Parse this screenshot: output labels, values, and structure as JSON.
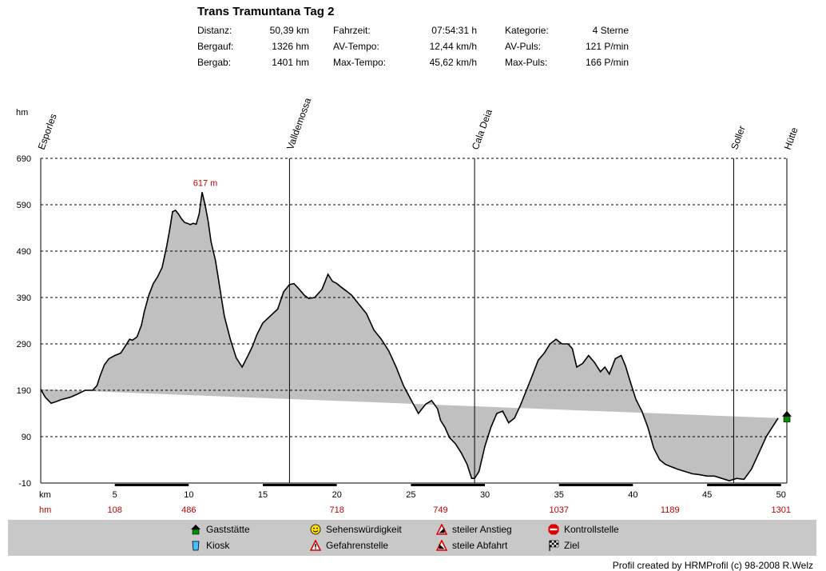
{
  "header": {
    "title": "Trans Tramuntana Tag 2",
    "stats": [
      [
        {
          "label": "Distanz:",
          "value": "50,39 km"
        },
        {
          "label": "Fahrzeit:",
          "value": "07:54:31 h"
        },
        {
          "label": "Kategorie:",
          "value": "4 Sterne"
        }
      ],
      [
        {
          "label": "Bergauf:",
          "value": "1326 hm"
        },
        {
          "label": "AV-Tempo:",
          "value": "12,44 km/h"
        },
        {
          "label": "AV-Puls:",
          "value": "121 P/min"
        }
      ],
      [
        {
          "label": "Bergab:",
          "value": "1401 hm"
        },
        {
          "label": "Max-Tempo:",
          "value": "45,62 km/h"
        },
        {
          "label": "Max-Puls:",
          "value": "166 P/min"
        }
      ]
    ]
  },
  "chart_data": {
    "type": "area",
    "ylabel": "hm",
    "xlabel": "km",
    "ylim": [
      -10,
      690
    ],
    "xlim": [
      0,
      50.39
    ],
    "yticks": [
      -10,
      90,
      190,
      290,
      390,
      490,
      590,
      690
    ],
    "xticks": [
      5,
      10,
      15,
      20,
      25,
      30,
      35,
      40,
      45,
      50
    ],
    "grid": true,
    "fill_color": "#c0c0c0",
    "line_color": "#000000",
    "waypoints": [
      {
        "name": "Esporles",
        "km": 0
      },
      {
        "name": "Valldemossa",
        "km": 16.8
      },
      {
        "name": "Cala Deia",
        "km": 29.3
      },
      {
        "name": "Soller",
        "km": 46.8
      },
      {
        "name": "Hütte",
        "km": 50.39
      }
    ],
    "peak_annotation": {
      "text": "617 m",
      "km": 10.9,
      "elev": 617
    },
    "cumulative_row": {
      "label": "hm",
      "entries": [
        {
          "km": 5,
          "value": "108"
        },
        {
          "km": 10,
          "value": "486"
        },
        {
          "km": 20,
          "value": "718"
        },
        {
          "km": 27,
          "value": "749"
        },
        {
          "km": 35,
          "value": "1037"
        },
        {
          "km": 42.5,
          "value": "1189"
        },
        {
          "km": 50,
          "value": "1301"
        }
      ]
    },
    "x": [
      0,
      0.3,
      0.7,
      1.0,
      1.4,
      2.0,
      2.5,
      3.0,
      3.5,
      3.8,
      4.0,
      4.3,
      4.6,
      5.0,
      5.4,
      5.7,
      6.0,
      6.2,
      6.5,
      6.8,
      7.0,
      7.3,
      7.6,
      7.9,
      8.2,
      8.5,
      8.7,
      8.9,
      9.1,
      9.3,
      9.5,
      9.7,
      9.9,
      10.1,
      10.3,
      10.5,
      10.7,
      10.9,
      11.1,
      11.3,
      11.5,
      11.8,
      12.0,
      12.4,
      12.8,
      13.2,
      13.6,
      14.0,
      14.3,
      14.6,
      15.0,
      15.5,
      16.0,
      16.4,
      16.8,
      17.1,
      17.4,
      17.8,
      18.1,
      18.5,
      19.0,
      19.4,
      19.7,
      20.0,
      20.3,
      20.6,
      21.0,
      21.5,
      22.0,
      22.5,
      23.0,
      23.5,
      24.0,
      24.5,
      25.0,
      25.5,
      26.0,
      26.4,
      26.8,
      27.0,
      27.3,
      27.6,
      28.0,
      28.4,
      28.8,
      29.1,
      29.3,
      29.6,
      30.0,
      30.4,
      30.8,
      31.2,
      31.6,
      32.0,
      32.4,
      32.8,
      33.2,
      33.6,
      34.0,
      34.4,
      34.8,
      35.2,
      35.6,
      35.9,
      36.2,
      36.6,
      37.0,
      37.4,
      37.8,
      38.1,
      38.4,
      38.8,
      39.2,
      39.5,
      39.8,
      40.2,
      40.6,
      41.0,
      41.4,
      41.8,
      42.2,
      42.6,
      43.0,
      43.5,
      44.0,
      44.5,
      45.0,
      45.5,
      46.0,
      46.5,
      47.0,
      47.5,
      48.0,
      48.5,
      49.0,
      49.4,
      49.8,
      50.1,
      50.39
    ],
    "elevation": [
      192,
      175,
      162,
      165,
      170,
      175,
      182,
      190,
      190,
      200,
      220,
      245,
      258,
      265,
      270,
      285,
      300,
      298,
      305,
      330,
      360,
      395,
      420,
      435,
      455,
      500,
      535,
      575,
      578,
      570,
      560,
      552,
      550,
      547,
      550,
      548,
      570,
      617,
      590,
      555,
      510,
      470,
      430,
      350,
      300,
      260,
      240,
      265,
      285,
      310,
      335,
      350,
      365,
      402,
      418,
      420,
      410,
      395,
      388,
      390,
      408,
      440,
      425,
      420,
      412,
      405,
      395,
      375,
      355,
      320,
      300,
      275,
      240,
      200,
      170,
      140,
      160,
      168,
      150,
      125,
      110,
      88,
      75,
      55,
      30,
      0,
      0,
      15,
      70,
      110,
      140,
      145,
      120,
      130,
      158,
      190,
      222,
      255,
      270,
      290,
      300,
      290,
      290,
      280,
      240,
      248,
      265,
      250,
      230,
      240,
      225,
      258,
      265,
      242,
      210,
      170,
      145,
      110,
      65,
      40,
      30,
      25,
      20,
      15,
      10,
      8,
      5,
      5,
      0,
      -5,
      0,
      -2,
      20,
      55,
      90,
      110,
      130
    ]
  },
  "legend": [
    {
      "icon": "house-icon",
      "label": "Gaststätte"
    },
    {
      "icon": "smiley-icon",
      "label": "Sehenswürdigkeit"
    },
    {
      "icon": "steep-ascent-icon",
      "label": "steiler Anstieg"
    },
    {
      "icon": "stop-icon",
      "label": "Kontrollstelle"
    },
    {
      "icon": "cup-icon",
      "label": "Kiosk"
    },
    {
      "icon": "warning-icon",
      "label": "Gefahrenstelle"
    },
    {
      "icon": "steep-descent-icon",
      "label": "steile Abfahrt"
    },
    {
      "icon": "checkered-flag-icon",
      "label": "Ziel"
    }
  ],
  "footer": {
    "credit": "Profil created by HRMProfil (c) 98-2008 R.Welz"
  }
}
